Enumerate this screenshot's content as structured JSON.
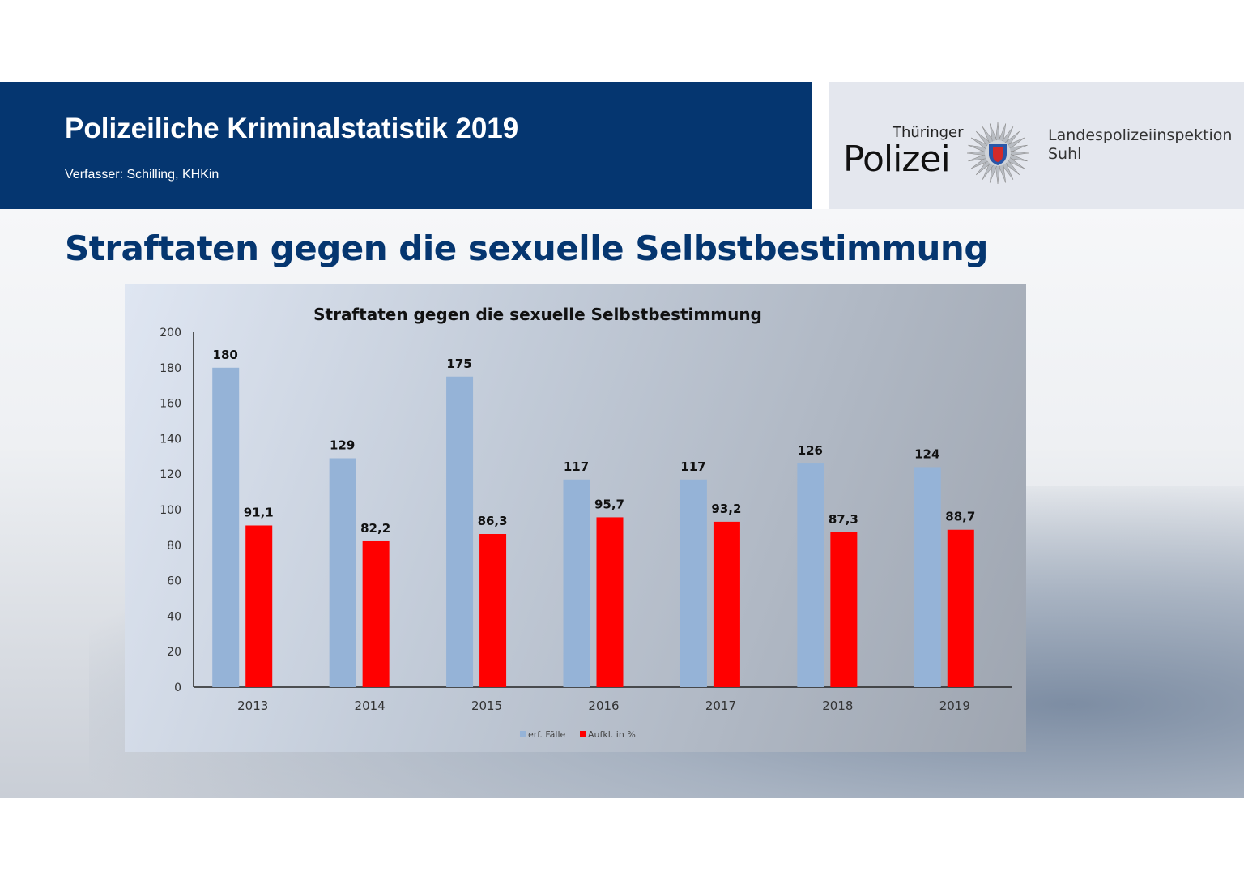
{
  "header": {
    "title": "Polizeiliche Kriminalstatistik 2019",
    "author": "Verfasser: Schilling, KHKin"
  },
  "logo": {
    "line1": "Thüringer",
    "line2": "Polizei",
    "org_line1": "Landespolizeiinspektion",
    "org_line2": "Suhl"
  },
  "page_heading": "Straftaten gegen die sexuelle Selbstbestimmung",
  "chart_data": {
    "type": "bar",
    "title": "Straftaten gegen die sexuelle Selbstbestimmung",
    "categories": [
      "2013",
      "2014",
      "2015",
      "2016",
      "2017",
      "2018",
      "2019"
    ],
    "series": [
      {
        "name": "erf. Fälle",
        "color": "#95b3d7",
        "values": [
          180,
          129,
          175,
          117,
          117,
          126,
          124
        ],
        "labels": [
          "180",
          "129",
          "175",
          "117",
          "117",
          "126",
          "124"
        ]
      },
      {
        "name": "Aufkl. in %",
        "color": "#ff0000",
        "values": [
          91.1,
          82.2,
          86.3,
          95.7,
          93.2,
          87.3,
          88.7
        ],
        "labels": [
          "91,1",
          "82,2",
          "86,3",
          "95,7",
          "93,2",
          "87,3",
          "88,7"
        ]
      }
    ],
    "ylim": [
      0,
      200
    ],
    "yticks": [
      0,
      20,
      40,
      60,
      80,
      100,
      120,
      140,
      160,
      180,
      200
    ],
    "grid": false,
    "legend": "bottom"
  }
}
